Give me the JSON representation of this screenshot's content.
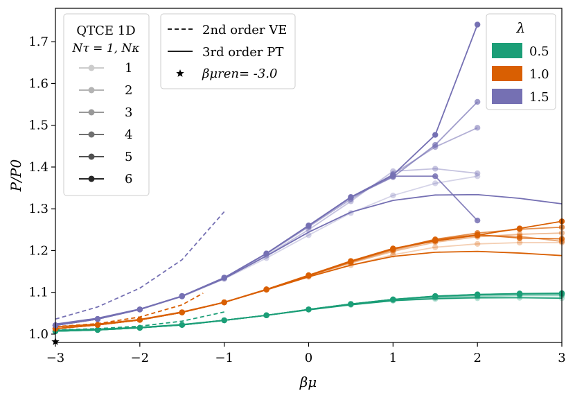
{
  "chart_data": {
    "type": "line",
    "xlabel": "βμ",
    "ylabel": "P/P0",
    "xlim": [
      -3,
      3
    ],
    "ylim": [
      0.98,
      1.78
    ],
    "xticks": [
      -3,
      -2,
      -1,
      0,
      1,
      2,
      3
    ],
    "xtick_labels": [
      "−3",
      "−2",
      "−1",
      "0",
      "1",
      "2",
      "3"
    ],
    "yticks": [
      1.0,
      1.1,
      1.2,
      1.3,
      1.4,
      1.5,
      1.6,
      1.7
    ],
    "ytick_labels": [
      "1.0",
      "1.1",
      "1.2",
      "1.3",
      "1.4",
      "1.5",
      "1.6",
      "1.7"
    ],
    "grid": false,
    "colors": {
      "0.5": "#1b9e77",
      "1.0": "#d95f02",
      "1.5": "#7570b3"
    },
    "legend_nk": {
      "title_line1": "QTCE 1D",
      "title_line2": "Nτ = 1, Nκ",
      "placement": "upper-left",
      "entries": [
        {
          "label": "1",
          "color": "#cccccc"
        },
        {
          "label": "2",
          "color": "#b3b3b3"
        },
        {
          "label": "3",
          "color": "#999999"
        },
        {
          "label": "4",
          "color": "#707070"
        },
        {
          "label": "5",
          "color": "#505050"
        },
        {
          "label": "6",
          "color": "#262626"
        }
      ]
    },
    "legend_style": {
      "placement": "upper-center",
      "entries": [
        {
          "label": "2nd order VE",
          "style": "dashed"
        },
        {
          "label": "3rd order PT",
          "style": "solid"
        },
        {
          "label": "βμren= -3.0",
          "style": "star"
        }
      ]
    },
    "legend_lambda": {
      "title": "λ",
      "placement": "upper-right",
      "entries": [
        {
          "label": "0.5",
          "color": "#1b9e77"
        },
        {
          "label": "1.0",
          "color": "#d95f02"
        },
        {
          "label": "1.5",
          "color": "#7570b3"
        }
      ]
    },
    "marker_series": [
      {
        "lambda": "0.5",
        "nk": 1,
        "x": [
          -3,
          -2.5,
          -2,
          -1.5,
          -1,
          -0.5,
          0,
          0.5,
          1,
          1.5,
          2,
          2.5,
          3
        ],
        "y": [
          1.007,
          1.01,
          1.015,
          1.022,
          1.033,
          1.045,
          1.059,
          1.07,
          1.08,
          1.084,
          1.086,
          1.087,
          1.086
        ]
      },
      {
        "lambda": "0.5",
        "nk": 2,
        "x": [
          -3,
          -2.5,
          -2,
          -1.5,
          -1,
          -0.5,
          0,
          0.5,
          1,
          1.5,
          2,
          2.5,
          3
        ],
        "y": [
          1.007,
          1.01,
          1.015,
          1.022,
          1.033,
          1.045,
          1.059,
          1.071,
          1.081,
          1.087,
          1.09,
          1.092,
          1.092
        ]
      },
      {
        "lambda": "0.5",
        "nk": 3,
        "x": [
          -3,
          -2.5,
          -2,
          -1.5,
          -1,
          -0.5,
          0,
          0.5,
          1,
          1.5,
          2,
          2.5,
          3
        ],
        "y": [
          1.007,
          1.01,
          1.015,
          1.022,
          1.033,
          1.045,
          1.059,
          1.072,
          1.082,
          1.089,
          1.093,
          1.095,
          1.095
        ]
      },
      {
        "lambda": "0.5",
        "nk": 4,
        "x": [
          -3,
          -2.5,
          -2,
          -1.5,
          -1,
          -0.5,
          0,
          0.5,
          1,
          1.5,
          2,
          2.5,
          3
        ],
        "y": [
          1.007,
          1.01,
          1.015,
          1.022,
          1.033,
          1.045,
          1.059,
          1.072,
          1.083,
          1.09,
          1.094,
          1.096,
          1.097
        ]
      },
      {
        "lambda": "0.5",
        "nk": 5,
        "x": [
          -3,
          -2.5,
          -2,
          -1.5,
          -1,
          -0.5,
          0,
          0.5,
          1,
          1.5,
          2,
          2.5,
          3
        ],
        "y": [
          1.007,
          1.01,
          1.015,
          1.022,
          1.033,
          1.045,
          1.059,
          1.072,
          1.083,
          1.091,
          1.095,
          1.097,
          1.097
        ]
      },
      {
        "lambda": "0.5",
        "nk": 6,
        "x": [
          -3,
          -2.5,
          -2,
          -1.5,
          -1,
          -0.5,
          0,
          0.5,
          1,
          1.5,
          2,
          2.5,
          3
        ],
        "y": [
          1.007,
          1.01,
          1.015,
          1.022,
          1.033,
          1.045,
          1.059,
          1.072,
          1.083,
          1.091,
          1.095,
          1.097,
          1.098
        ]
      },
      {
        "lambda": "1.0",
        "nk": 1,
        "x": [
          -3,
          -2.5,
          -2,
          -1.5,
          -1,
          -0.5,
          0,
          0.5,
          1,
          1.5,
          2,
          2.5,
          3
        ],
        "y": [
          1.013,
          1.022,
          1.034,
          1.052,
          1.076,
          1.106,
          1.137,
          1.165,
          1.19,
          1.208,
          1.216,
          1.219,
          1.219
        ]
      },
      {
        "lambda": "1.0",
        "nk": 2,
        "x": [
          -3,
          -2.5,
          -2,
          -1.5,
          -1,
          -0.5,
          0,
          0.5,
          1,
          1.5,
          2,
          2.5,
          3
        ],
        "y": [
          1.013,
          1.022,
          1.034,
          1.052,
          1.076,
          1.106,
          1.139,
          1.17,
          1.198,
          1.22,
          1.233,
          1.239,
          1.242
        ]
      },
      {
        "lambda": "1.0",
        "nk": 3,
        "x": [
          -3,
          -2.5,
          -2,
          -1.5,
          -1,
          -0.5,
          0,
          0.5,
          1,
          1.5,
          2,
          2.5,
          3
        ],
        "y": [
          1.013,
          1.022,
          1.034,
          1.052,
          1.076,
          1.107,
          1.14,
          1.172,
          1.201,
          1.224,
          1.236,
          1.234,
          1.222
        ]
      },
      {
        "lambda": "1.0",
        "nk": 4,
        "x": [
          -3,
          -2.5,
          -2,
          -1.5,
          -1,
          -0.5,
          0,
          0.5,
          1,
          1.5,
          2,
          2.5,
          3
        ],
        "y": [
          1.013,
          1.022,
          1.034,
          1.052,
          1.076,
          1.107,
          1.14,
          1.173,
          1.203,
          1.227,
          1.242,
          1.251,
          1.256
        ]
      },
      {
        "lambda": "1.0",
        "nk": 5,
        "x": [
          -3,
          -2.5,
          -2,
          -1.5,
          -1,
          -0.5,
          0,
          0.5,
          1,
          1.5,
          2,
          2.5,
          3
        ],
        "y": [
          1.013,
          1.022,
          1.034,
          1.052,
          1.076,
          1.107,
          1.14,
          1.174,
          1.204,
          1.226,
          1.238,
          1.23,
          1.228
        ]
      },
      {
        "lambda": "1.0",
        "nk": 6,
        "x": [
          -3,
          -2.5,
          -2,
          -1.5,
          -1,
          -0.5,
          0,
          0.5,
          1,
          1.5,
          2,
          2.5,
          3
        ],
        "y": [
          1.013,
          1.022,
          1.034,
          1.052,
          1.076,
          1.107,
          1.141,
          1.175,
          1.205,
          1.223,
          1.237,
          1.253,
          1.27
        ]
      },
      {
        "lambda": "1.5",
        "nk": 1,
        "x": [
          -3,
          -2.5,
          -2,
          -1.5,
          -1,
          -0.5,
          0,
          0.5,
          1,
          1.5,
          2
        ],
        "y": [
          1.021,
          1.036,
          1.059,
          1.09,
          1.132,
          1.182,
          1.237,
          1.29,
          1.332,
          1.361,
          1.378
        ]
      },
      {
        "lambda": "1.5",
        "nk": 2,
        "x": [
          -3,
          -2.5,
          -2,
          -1.5,
          -1,
          -0.5,
          0,
          0.5,
          1,
          1.5,
          2
        ],
        "y": [
          1.021,
          1.036,
          1.059,
          1.09,
          1.133,
          1.188,
          1.25,
          1.318,
          1.39,
          1.396,
          1.385
        ]
      },
      {
        "lambda": "1.5",
        "nk": 3,
        "x": [
          -3,
          -2.5,
          -2,
          -1.5,
          -1,
          -0.5,
          0,
          0.5,
          1,
          1.5,
          2
        ],
        "y": [
          1.021,
          1.036,
          1.059,
          1.091,
          1.135,
          1.192,
          1.257,
          1.323,
          1.383,
          1.448,
          1.494
        ]
      },
      {
        "lambda": "1.5",
        "nk": 4,
        "x": [
          -3,
          -2.5,
          -2,
          -1.5,
          -1,
          -0.5,
          0,
          0.5,
          1,
          1.5,
          2
        ],
        "y": [
          1.021,
          1.036,
          1.059,
          1.091,
          1.135,
          1.193,
          1.259,
          1.327,
          1.376,
          1.453,
          1.556
        ]
      },
      {
        "lambda": "1.5",
        "nk": 5,
        "x": [
          -3,
          -2.5,
          -2,
          -1.5,
          -1,
          -0.5,
          0,
          0.5,
          1,
          1.5,
          2
        ],
        "y": [
          1.021,
          1.036,
          1.059,
          1.091,
          1.135,
          1.193,
          1.26,
          1.328,
          1.378,
          1.378,
          1.272
        ]
      },
      {
        "lambda": "1.5",
        "nk": 6,
        "x": [
          -3,
          -2.5,
          -2,
          -1.5,
          -1,
          -0.5,
          0,
          0.5,
          1,
          1.5,
          2
        ],
        "y": [
          1.021,
          1.036,
          1.059,
          1.091,
          1.135,
          1.193,
          1.26,
          1.328,
          1.381,
          1.477,
          1.741
        ]
      }
    ],
    "ve_series": [
      {
        "lambda": "0.5",
        "x": [
          -3,
          -2.5,
          -2,
          -1.5,
          -1
        ],
        "y": [
          1.01,
          1.013,
          1.019,
          1.031,
          1.053
        ]
      },
      {
        "lambda": "1.0",
        "x": [
          -3,
          -2.5,
          -2,
          -1.5,
          -1.25
        ],
        "y": [
          1.018,
          1.025,
          1.041,
          1.07,
          1.098
        ]
      },
      {
        "lambda": "1.5",
        "x": [
          -3,
          -2.5,
          -2,
          -1.5,
          -1
        ],
        "y": [
          1.036,
          1.065,
          1.11,
          1.178,
          1.293
        ]
      }
    ],
    "pt_series": [
      {
        "lambda": "0.5",
        "x": [
          -3,
          -2.5,
          -2,
          -1.5,
          -1,
          -0.5,
          0,
          0.5,
          1,
          1.5,
          2,
          2.5,
          3
        ],
        "y": [
          1.009,
          1.012,
          1.016,
          1.023,
          1.033,
          1.045,
          1.058,
          1.07,
          1.08,
          1.085,
          1.087,
          1.087,
          1.086
        ]
      },
      {
        "lambda": "1.0",
        "x": [
          -3,
          -2.5,
          -2,
          -1.5,
          -1,
          -0.5,
          0,
          0.5,
          1,
          1.5,
          2,
          2.5,
          3
        ],
        "y": [
          1.017,
          1.024,
          1.035,
          1.053,
          1.076,
          1.106,
          1.137,
          1.165,
          1.186,
          1.196,
          1.198,
          1.194,
          1.188
        ]
      },
      {
        "lambda": "1.5",
        "x": [
          -3,
          -2.5,
          -2,
          -1.5,
          -1,
          -0.5,
          0,
          0.5,
          1,
          1.5,
          2,
          2.5,
          3
        ],
        "y": [
          1.024,
          1.038,
          1.06,
          1.091,
          1.133,
          1.187,
          1.244,
          1.292,
          1.32,
          1.333,
          1.334,
          1.325,
          1.312
        ]
      }
    ],
    "star_point": {
      "x": -3,
      "y": 0.982
    }
  }
}
